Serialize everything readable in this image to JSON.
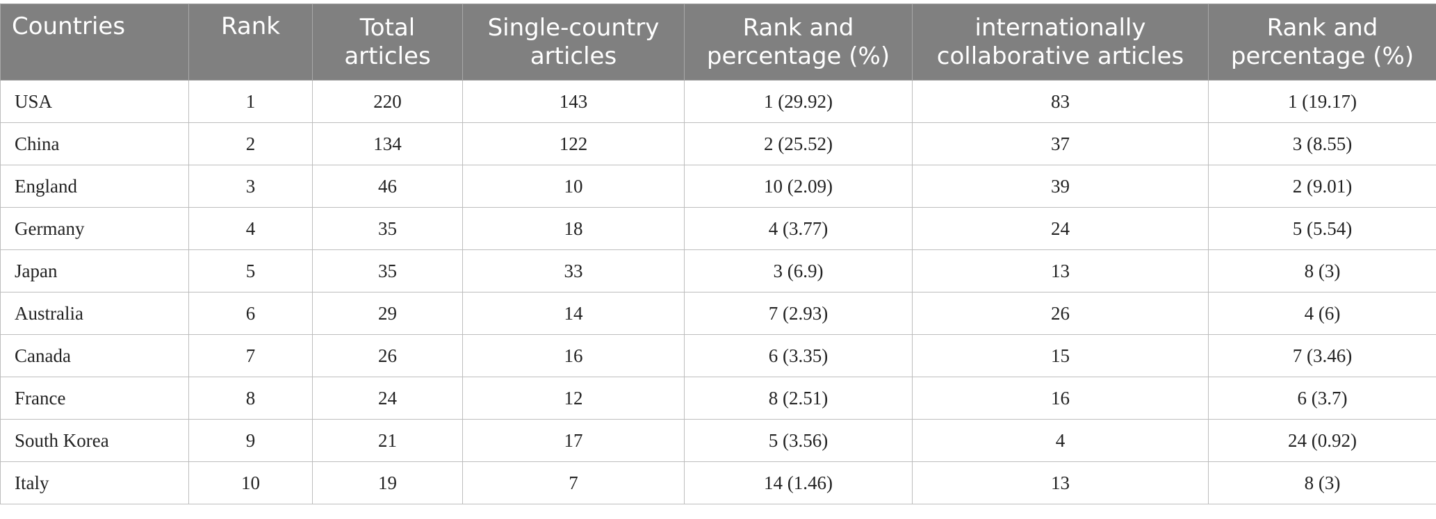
{
  "table": {
    "header": [
      "Countries",
      "Rank",
      "Total articles",
      "Single-country articles",
      "Rank and percentage (%)",
      "internationally collaborative articles",
      "Rank and percentage (%)"
    ],
    "rows": [
      [
        "USA",
        "1",
        "220",
        "143",
        "1 (29.92)",
        "83",
        "1 (19.17)"
      ],
      [
        "China",
        "2",
        "134",
        "122",
        "2 (25.52)",
        "37",
        "3 (8.55)"
      ],
      [
        "England",
        "3",
        "46",
        "10",
        "10 (2.09)",
        "39",
        "2 (9.01)"
      ],
      [
        "Germany",
        "4",
        "35",
        "18",
        "4 (3.77)",
        "24",
        "5 (5.54)"
      ],
      [
        "Japan",
        "5",
        "35",
        "33",
        "3 (6.9)",
        "13",
        "8 (3)"
      ],
      [
        "Australia",
        "6",
        "29",
        "14",
        "7 (2.93)",
        "26",
        "4 (6)"
      ],
      [
        "Canada",
        "7",
        "26",
        "16",
        "6 (3.35)",
        "15",
        "7 (3.46)"
      ],
      [
        "France",
        "8",
        "24",
        "12",
        "8 (2.51)",
        "16",
        "6 (3.7)"
      ],
      [
        "South Korea",
        "9",
        "21",
        "17",
        "5 (3.56)",
        "4",
        "24 (0.92)"
      ],
      [
        "Italy",
        "10",
        "19",
        "7",
        "14 (1.46)",
        "13",
        "8 (3)"
      ]
    ]
  }
}
